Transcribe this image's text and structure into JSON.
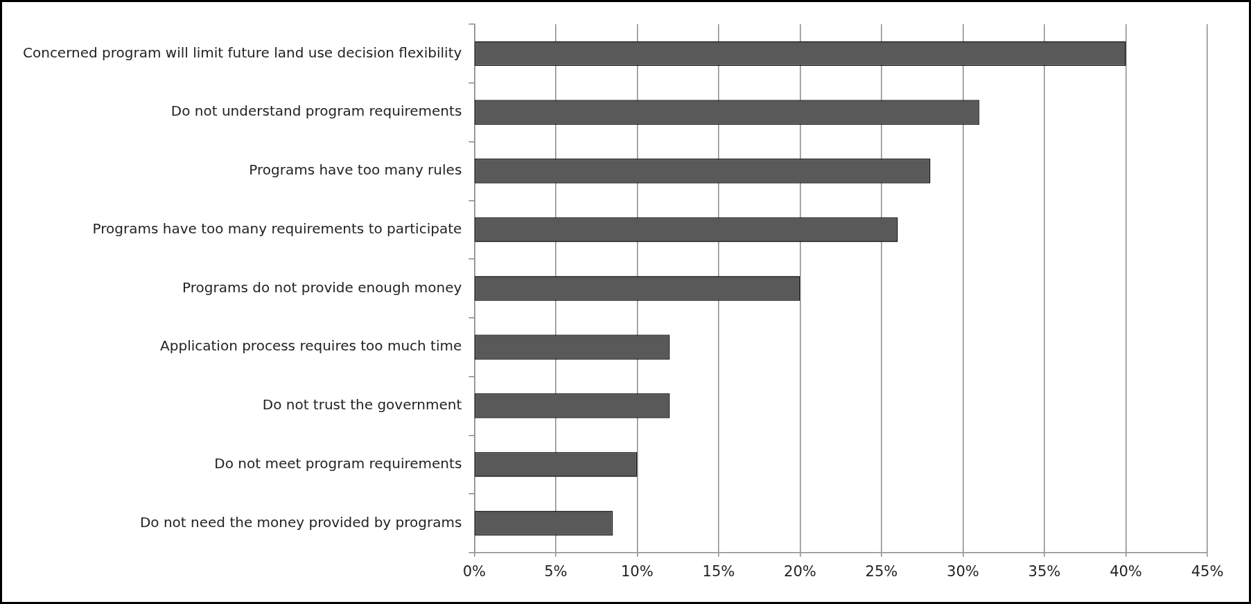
{
  "chart_data": {
    "type": "bar",
    "orientation": "horizontal",
    "categories": [
      "Concerned program will limit future land use decision flexibility",
      "Do not understand program requirements",
      "Programs have too many rules",
      "Programs have too many requirements to participate",
      "Programs do not provide enough money",
      "Application process requires too much time",
      "Do not trust the government",
      "Do not meet program requirements",
      "Do not need the money provided by programs"
    ],
    "values": [
      40,
      31,
      28,
      26,
      20,
      12,
      12,
      10,
      8.5
    ],
    "color": "#595959",
    "xlim": [
      0,
      45
    ],
    "xticks": [
      {
        "value": 0,
        "label": "0%"
      },
      {
        "value": 5,
        "label": "5%"
      },
      {
        "value": 10,
        "label": "10%"
      },
      {
        "value": 15,
        "label": "15%"
      },
      {
        "value": 20,
        "label": "20%"
      },
      {
        "value": 25,
        "label": "25%"
      },
      {
        "value": 30,
        "label": "30%"
      },
      {
        "value": 35,
        "label": "35%"
      },
      {
        "value": 40,
        "label": "40%"
      },
      {
        "value": 45,
        "label": "45%"
      }
    ],
    "grid": "x",
    "legend": false
  }
}
